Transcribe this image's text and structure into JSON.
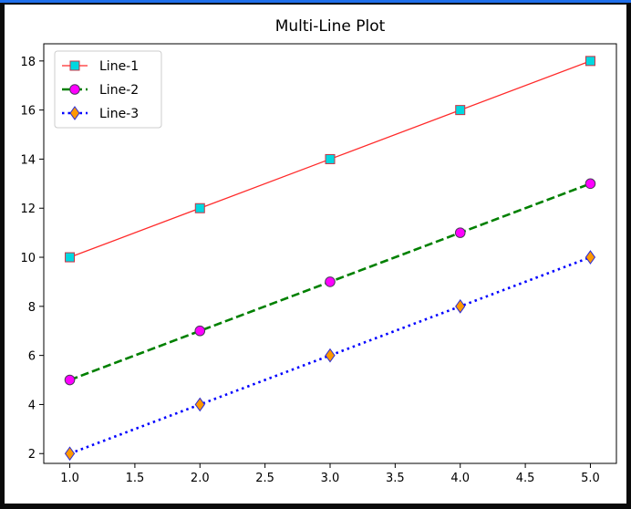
{
  "chart_data": {
    "type": "line",
    "title": "Multi-Line Plot",
    "xlabel": "",
    "ylabel": "",
    "xlim": [
      0.8,
      5.2
    ],
    "ylim": [
      1.6,
      18.7
    ],
    "xticks": [
      1.0,
      1.5,
      2.0,
      2.5,
      3.0,
      3.5,
      4.0,
      4.5,
      5.0
    ],
    "xtick_labels": [
      "1.0",
      "1.5",
      "2.0",
      "2.5",
      "3.0",
      "3.5",
      "4.0",
      "4.5",
      "5.0"
    ],
    "yticks": [
      2,
      4,
      6,
      8,
      10,
      12,
      14,
      16,
      18
    ],
    "ytick_labels": [
      "2",
      "4",
      "6",
      "8",
      "10",
      "12",
      "14",
      "16",
      "18"
    ],
    "grid": false,
    "legend_position": "top-left",
    "x": [
      1.0,
      2.0,
      3.0,
      4.0,
      5.0
    ],
    "series": [
      {
        "name": "Line-1",
        "values": [
          10,
          12,
          14,
          16,
          18
        ],
        "line_color": "#ff2a2a",
        "line_style": "solid",
        "marker": "square",
        "marker_face": "#00d8e0",
        "marker_edge": "#cc3344"
      },
      {
        "name": "Line-2",
        "values": [
          5,
          7,
          9,
          11,
          13
        ],
        "line_color": "#008000",
        "line_style": "dashed",
        "marker": "circle",
        "marker_face": "#ff00ff",
        "marker_edge": "#4a3a5a"
      },
      {
        "name": "Line-3",
        "values": [
          2,
          4,
          6,
          8,
          10
        ],
        "line_color": "#0000ff",
        "line_style": "dotted",
        "marker": "diamond",
        "marker_face": "#ff9900",
        "marker_edge": "#2b2bd6"
      }
    ]
  }
}
